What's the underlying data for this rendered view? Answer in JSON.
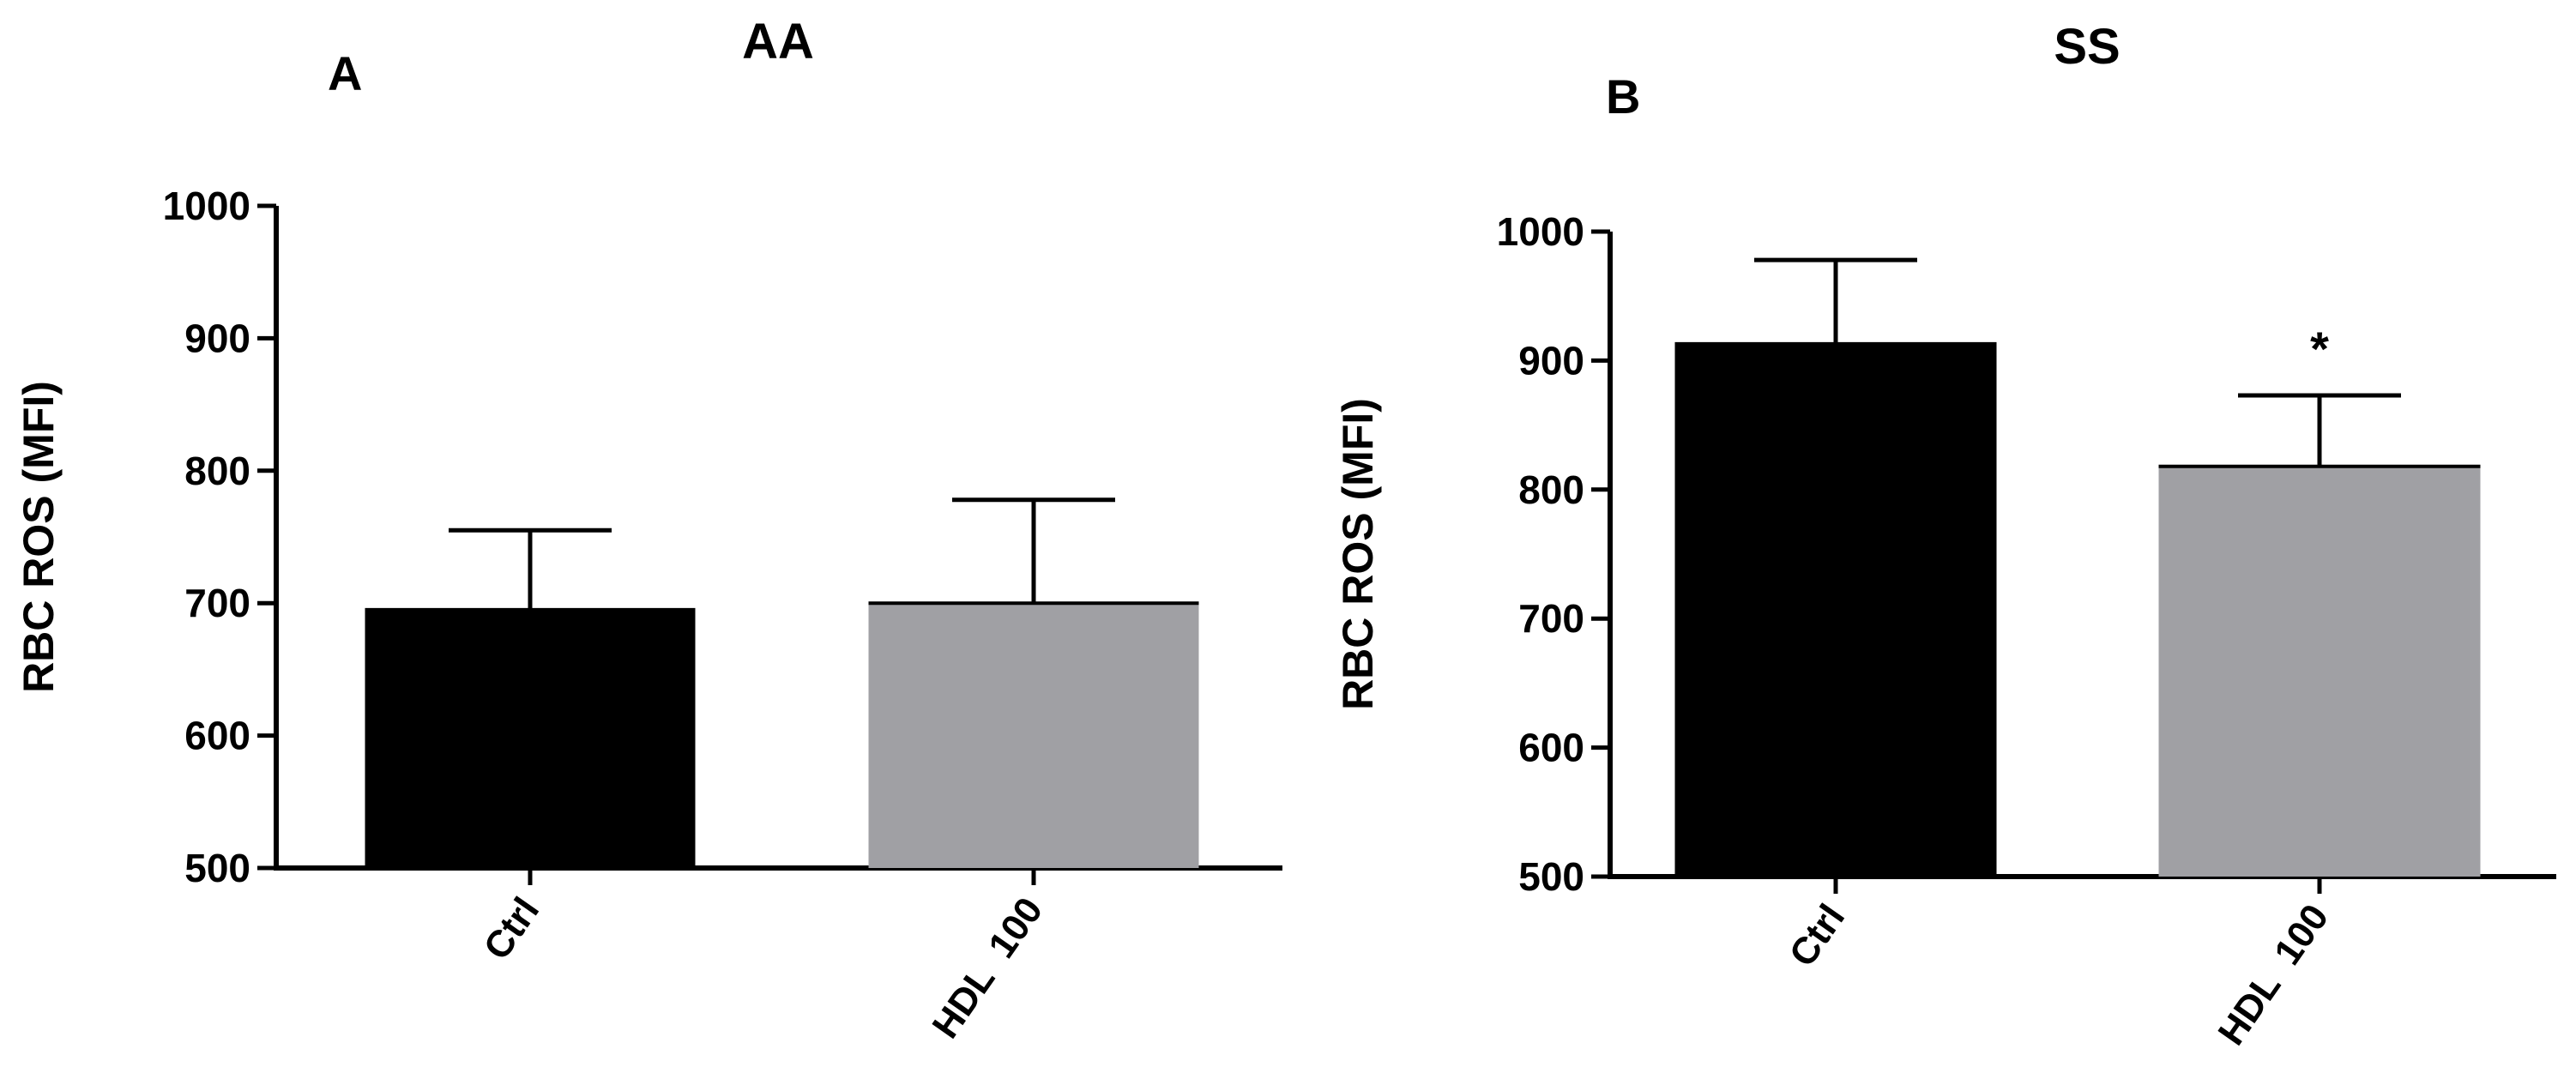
{
  "chart_data": [
    {
      "type": "bar",
      "panel": "A",
      "title": "AA",
      "ylabel": "RBC ROS (MFI)",
      "xlabel": "",
      "ylim": [
        500,
        1000
      ],
      "yticks": [
        "500",
        "600",
        "700",
        "800",
        "900",
        "1000"
      ],
      "categories": [
        "Ctrl",
        "HDL  100"
      ],
      "values": [
        695,
        700
      ],
      "errors": [
        60,
        78
      ],
      "colors": [
        "#000000",
        "#a0a0a4"
      ],
      "annotations": [
        "",
        ""
      ],
      "grid": false
    },
    {
      "type": "bar",
      "panel": "B",
      "title": "SS",
      "ylabel": "RBC ROS (MFI)",
      "xlabel": "",
      "ylim": [
        500,
        1000
      ],
      "yticks": [
        "500",
        "600",
        "700",
        "800",
        "900",
        "1000"
      ],
      "categories": [
        "Ctrl",
        "HDL  100"
      ],
      "values": [
        913,
        818
      ],
      "errors": [
        65,
        55
      ],
      "colors": [
        "#000000",
        "#a0a0a4"
      ],
      "annotations": [
        "",
        "*"
      ],
      "grid": false
    }
  ]
}
